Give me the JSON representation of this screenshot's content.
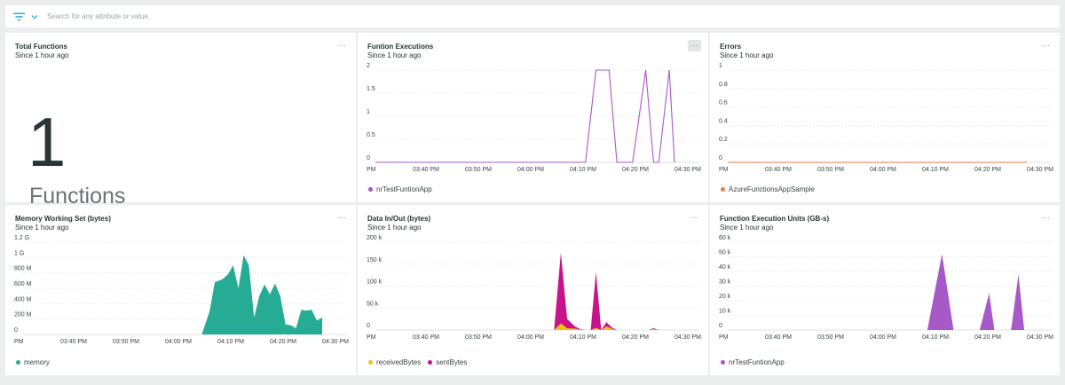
{
  "filter_bar": {
    "search_placeholder": "Search for any attribute or value.",
    "filter_icon": "filter-icon",
    "chevron_icon": "chevron-down-icon"
  },
  "more_label": "···",
  "panels": {
    "total_functions": {
      "title": "Total Functions",
      "subtitle": "Since 1 hour ago",
      "value": "1",
      "unit": "Functions"
    },
    "function_executions": {
      "title": "Funtion Executions",
      "subtitle": "Since 1 hour ago",
      "legend": [
        "nrTestFuntionApp"
      ]
    },
    "errors": {
      "title": "Errors",
      "subtitle": "Since 1 hour ago",
      "legend": [
        "AzureFunctionsAppSample"
      ]
    },
    "memory": {
      "title": "Memory Working Set (bytes)",
      "subtitle": "Since 1 hour ago",
      "legend": [
        "memory"
      ]
    },
    "data_io": {
      "title": "Data In/Out (bytes)",
      "subtitle": "Since 1 hour ago",
      "legend": [
        "receivedBytes",
        "sentBytes"
      ]
    },
    "exec_units": {
      "title": "Function Execution Units (GB-s)",
      "subtitle": "Since 1 hour ago",
      "legend": [
        "nrTestFuntionApp"
      ]
    }
  },
  "colors": {
    "purple": "#a659c7",
    "orange": "#f07b48",
    "teal": "#26ac94",
    "yellow": "#f5c110",
    "magenta": "#c8148a",
    "grid": "#e3e7e7"
  },
  "chart_data": [
    {
      "id": "function_executions",
      "type": "line",
      "x_start_label": "PM",
      "x_ticks": [
        "03:40 PM",
        "03:50 PM",
        "04:00 PM",
        "04:10 PM",
        "04:20 PM",
        "04:30 PM"
      ],
      "xlim": [
        0,
        60
      ],
      "y_ticks": [
        "0",
        "0.5",
        "1",
        "1.5",
        "2"
      ],
      "ylim": [
        0,
        2
      ],
      "series": [
        {
          "name": "nrTestFuntionApp",
          "color": "#a659c7",
          "x": [
            0,
            43,
            45,
            47.5,
            49,
            52,
            54.5,
            56,
            57,
            59,
            60
          ],
          "y": [
            0,
            0,
            2,
            2,
            0,
            0,
            2,
            0,
            0,
            2,
            0
          ]
        }
      ]
    },
    {
      "id": "errors",
      "type": "line",
      "x_start_label": "PM",
      "x_ticks": [
        "03:40 PM",
        "03:50 PM",
        "04:00 PM",
        "04:10 PM",
        "04:20 PM",
        "04:30 PM"
      ],
      "xlim": [
        0,
        60
      ],
      "y_ticks": [
        "0",
        "0.2",
        "0.4",
        "0.6",
        "0.8",
        "1"
      ],
      "ylim": [
        0,
        1
      ],
      "series": [
        {
          "name": "AzureFunctionsAppSample",
          "color": "#f07b48",
          "x": [
            0,
            60
          ],
          "y": [
            0,
            0
          ]
        }
      ]
    },
    {
      "id": "memory",
      "type": "area",
      "x_start_label": "PM",
      "x_ticks": [
        "03:40 PM",
        "03:50 PM",
        "04:00 PM",
        "04:10 PM",
        "04:20 PM",
        "04:30 PM"
      ],
      "xlim": [
        0,
        60
      ],
      "y_ticks": [
        "0",
        "200 M",
        "400 M",
        "600 M",
        "800 M",
        "1 G",
        "1.2 G"
      ],
      "ylim": [
        0,
        1.2
      ],
      "series": [
        {
          "name": "memory",
          "color": "#26ac94",
          "x": [
            37,
            38.5,
            39.5,
            41,
            42,
            43,
            44,
            45,
            46,
            47,
            48,
            49,
            50,
            51,
            52,
            53,
            54,
            55,
            56,
            57,
            58,
            59,
            60
          ],
          "y": [
            0,
            0.3,
            0.68,
            0.72,
            0.78,
            0.9,
            0.6,
            1.03,
            0.9,
            0.22,
            0.5,
            0.65,
            0.52,
            0.66,
            0.5,
            0.13,
            0.12,
            0.08,
            0.32,
            0.31,
            0.32,
            0.18,
            0.22
          ]
        }
      ]
    },
    {
      "id": "data_io",
      "type": "area",
      "x_start_label": "PM",
      "x_ticks": [
        "03:40 PM",
        "03:50 PM",
        "04:00 PM",
        "04:10 PM",
        "04:20 PM",
        "04:30 PM"
      ],
      "xlim": [
        0,
        60
      ],
      "y_ticks": [
        "0",
        "50 k",
        "100 k",
        "150 k",
        "200 k"
      ],
      "ylim": [
        0,
        200
      ],
      "series": [
        {
          "name": "sentBytes",
          "color": "#c8148a",
          "x": [
            37,
            38.3,
            39.5,
            41,
            42,
            43,
            44,
            45,
            46,
            47,
            48,
            49,
            50,
            55,
            56,
            57
          ],
          "y": [
            0,
            176,
            25,
            8,
            2,
            0,
            0,
            132,
            0,
            18,
            6,
            0,
            0,
            0,
            4,
            0
          ]
        },
        {
          "name": "receivedBytes",
          "color": "#f5c110",
          "x": [
            37,
            38.3,
            39.5,
            41,
            42,
            43,
            44,
            45,
            46,
            47,
            48,
            49,
            50,
            55,
            56,
            57
          ],
          "y": [
            0,
            15,
            4,
            3,
            1,
            0,
            0,
            5,
            0,
            8,
            3,
            0,
            0,
            0,
            2,
            0
          ]
        }
      ]
    },
    {
      "id": "exec_units",
      "type": "area",
      "x_start_label": "PM",
      "x_ticks": [
        "03:40 PM",
        "03:50 PM",
        "04:00 PM",
        "04:10 PM",
        "04:20 PM",
        "04:30 PM"
      ],
      "xlim": [
        0,
        60
      ],
      "y_ticks": [
        "0",
        "10 k",
        "20 k",
        "30 k",
        "40 k",
        "50 k",
        "60 k"
      ],
      "ylim": [
        0,
        60
      ],
      "series": [
        {
          "name": "nrTestFuntionApp",
          "color": "#a659c7",
          "x": [
            0,
            41,
            43.8,
            46,
            51,
            52.8,
            53.8,
            57,
            58.4,
            59.5,
            60
          ],
          "y": [
            0,
            0,
            52,
            0,
            0,
            25,
            0,
            0,
            38,
            0,
            0
          ]
        }
      ]
    }
  ]
}
